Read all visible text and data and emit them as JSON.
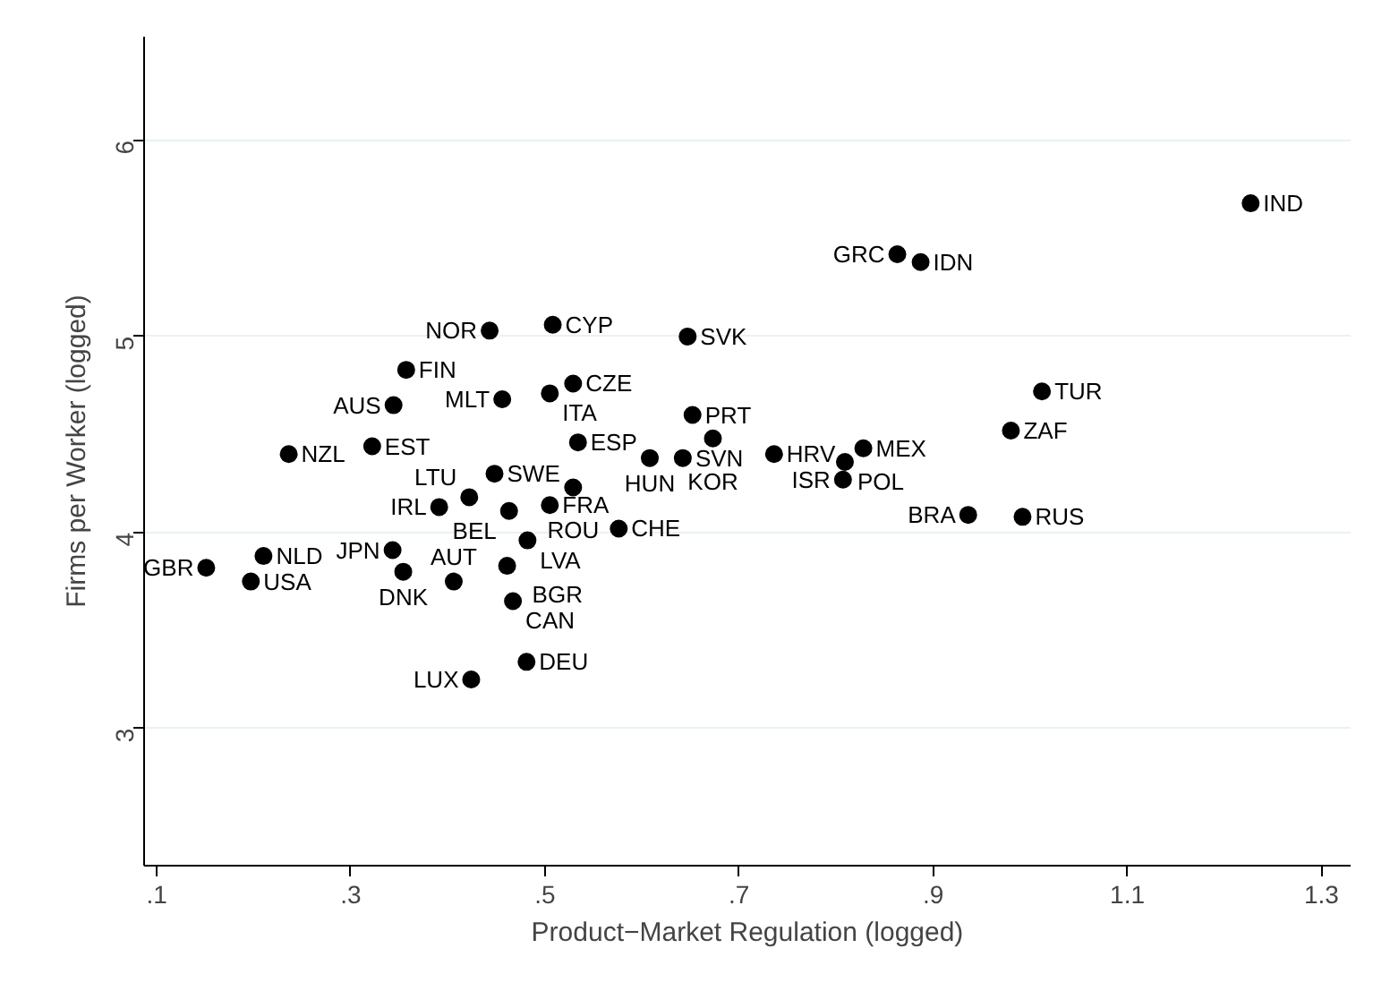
{
  "chart_data": {
    "type": "scatter",
    "xlabel": "Product−Market Regulation (logged)",
    "ylabel": "Firms per Worker (logged)",
    "xlim": [
      0.087,
      1.33
    ],
    "ylim": [
      2.3,
      6.53
    ],
    "xticks": [
      {
        "value": 0.1,
        "label": ".1"
      },
      {
        "value": 0.3,
        "label": ".3"
      },
      {
        "value": 0.5,
        "label": ".5"
      },
      {
        "value": 0.7,
        "label": ".7"
      },
      {
        "value": 0.9,
        "label": ".9"
      },
      {
        "value": 1.1,
        "label": "1.1"
      },
      {
        "value": 1.3,
        "label": "1.3"
      }
    ],
    "yticks": [
      3,
      4,
      5,
      6
    ],
    "grid": "y",
    "marker": "circle",
    "series": [
      {
        "color": "#000000",
        "x": [
          0.443,
          0.508,
          0.357,
          0.344,
          0.456,
          0.505,
          0.529,
          0.236,
          0.322,
          0.534,
          0.448,
          0.422,
          0.391,
          0.463,
          0.505,
          0.529,
          0.576,
          0.482,
          0.461,
          0.467,
          0.406,
          0.354,
          0.343,
          0.21,
          0.151,
          0.197,
          0.481,
          0.424,
          0.647,
          0.652,
          0.673,
          0.608,
          0.642,
          0.736,
          0.828,
          0.809,
          0.807,
          0.863,
          0.887,
          1.227,
          1.012,
          0.98,
          0.936,
          0.992
        ],
        "values": [
          5.03,
          5.06,
          4.83,
          4.65,
          4.68,
          4.71,
          4.76,
          4.4,
          4.44,
          4.46,
          4.3,
          4.18,
          4.13,
          4.11,
          4.14,
          4.23,
          4.02,
          3.96,
          3.83,
          3.65,
          3.75,
          3.8,
          3.91,
          3.88,
          3.82,
          3.75,
          3.34,
          3.25,
          5.0,
          4.6,
          4.48,
          4.38,
          4.38,
          4.4,
          4.43,
          4.36,
          4.27,
          5.42,
          5.38,
          5.68,
          4.72,
          4.52,
          4.09,
          4.08
        ]
      }
    ],
    "annotations": [
      {
        "text": "NOR",
        "x": 0.443,
        "y": 5.03
      },
      {
        "text": "CYP",
        "x": 0.508,
        "y": 5.06
      },
      {
        "text": "FIN",
        "x": 0.357,
        "y": 4.83
      },
      {
        "text": "AUS",
        "x": 0.344,
        "y": 4.65
      },
      {
        "text": "MLT",
        "x": 0.456,
        "y": 4.68
      },
      {
        "text": "ITA",
        "x": 0.505,
        "y": 4.71
      },
      {
        "text": "CZE",
        "x": 0.529,
        "y": 4.76
      },
      {
        "text": "NZL",
        "x": 0.236,
        "y": 4.4
      },
      {
        "text": "EST",
        "x": 0.322,
        "y": 4.44
      },
      {
        "text": "ESP",
        "x": 0.534,
        "y": 4.46
      },
      {
        "text": "SWE",
        "x": 0.448,
        "y": 4.3
      },
      {
        "text": "LTU",
        "x": 0.422,
        "y": 4.18
      },
      {
        "text": "IRL",
        "x": 0.391,
        "y": 4.13
      },
      {
        "text": "BEL",
        "x": 0.463,
        "y": 4.11
      },
      {
        "text": "FRA",
        "x": 0.505,
        "y": 4.14
      },
      {
        "text": "ROU",
        "x": 0.529,
        "y": 4.23
      },
      {
        "text": "CHE",
        "x": 0.576,
        "y": 4.02
      },
      {
        "text": "LVA",
        "x": 0.482,
        "y": 3.96
      },
      {
        "text": "BGR",
        "x": 0.461,
        "y": 3.83
      },
      {
        "text": "CAN",
        "x": 0.467,
        "y": 3.65
      },
      {
        "text": "AUT",
        "x": 0.406,
        "y": 3.75
      },
      {
        "text": "DNK",
        "x": 0.354,
        "y": 3.8
      },
      {
        "text": "JPN",
        "x": 0.343,
        "y": 3.91
      },
      {
        "text": "NLD",
        "x": 0.21,
        "y": 3.88
      },
      {
        "text": "GBR",
        "x": 0.151,
        "y": 3.82
      },
      {
        "text": "USA",
        "x": 0.197,
        "y": 3.75
      },
      {
        "text": "DEU",
        "x": 0.481,
        "y": 3.34
      },
      {
        "text": "LUX",
        "x": 0.424,
        "y": 3.25
      },
      {
        "text": "SVK",
        "x": 0.647,
        "y": 5.0
      },
      {
        "text": "PRT",
        "x": 0.652,
        "y": 4.6
      },
      {
        "text": "KOR",
        "x": 0.673,
        "y": 4.48
      },
      {
        "text": "HUN",
        "x": 0.608,
        "y": 4.38
      },
      {
        "text": "SVN",
        "x": 0.642,
        "y": 4.38
      },
      {
        "text": "HRV",
        "x": 0.736,
        "y": 4.4
      },
      {
        "text": "MEX",
        "x": 0.828,
        "y": 4.43
      },
      {
        "text": "POL",
        "x": 0.809,
        "y": 4.36
      },
      {
        "text": "ISR",
        "x": 0.807,
        "y": 4.27
      },
      {
        "text": "GRC",
        "x": 0.863,
        "y": 5.42
      },
      {
        "text": "IDN",
        "x": 0.887,
        "y": 5.38
      },
      {
        "text": "IND",
        "x": 1.227,
        "y": 5.68
      },
      {
        "text": "TUR",
        "x": 1.012,
        "y": 4.72
      },
      {
        "text": "ZAF",
        "x": 0.98,
        "y": 4.52
      },
      {
        "text": "BRA",
        "x": 0.936,
        "y": 4.09
      },
      {
        "text": "RUS",
        "x": 0.992,
        "y": 4.08
      }
    ]
  }
}
